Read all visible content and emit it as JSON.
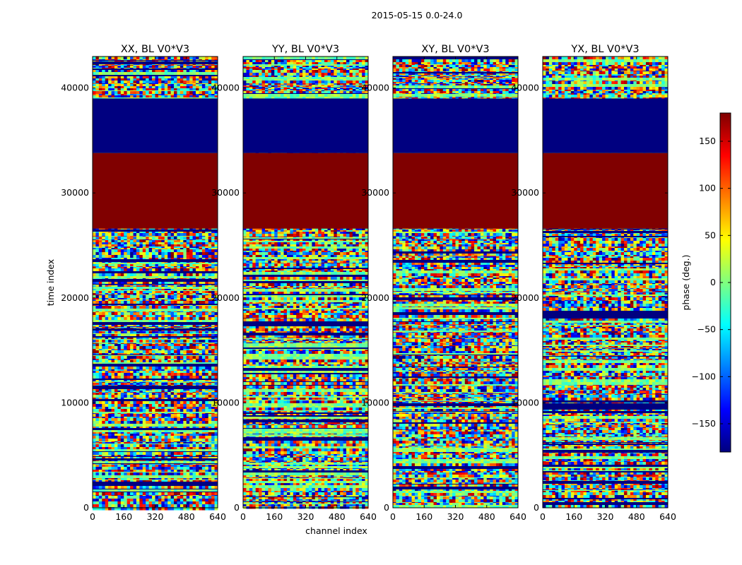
{
  "figure": {
    "suptitle": "2015-05-15 0.0-24.0",
    "ylabel": "time index",
    "xlabel": "channel index",
    "colorbar_label": "phase (deg.)"
  },
  "chart_data": {
    "type": "heatmap",
    "colormap": "jet",
    "xlim": [
      0,
      640
    ],
    "ylim": [
      0,
      43000
    ],
    "clim": [
      -180,
      180
    ],
    "x_ticks": [
      0,
      160,
      320,
      480,
      640
    ],
    "x_tick_labels": [
      "0",
      "160",
      "320",
      "480",
      "640"
    ],
    "y_ticks": [
      0,
      10000,
      20000,
      30000,
      40000
    ],
    "y_tick_labels": [
      "0",
      "10000",
      "20000",
      "30000",
      "40000"
    ],
    "colorbar_ticks": [
      -150,
      -100,
      -50,
      0,
      50,
      100,
      150
    ],
    "colorbar_tick_labels": [
      "−150",
      "−100",
      "−50",
      "0",
      "50",
      "100",
      "150"
    ],
    "panels": [
      {
        "title": "XX, BL V0*V3"
      },
      {
        "title": "YY, BL V0*V3"
      },
      {
        "title": "XY, BL V0*V3"
      },
      {
        "title": "YX, BL V0*V3"
      }
    ],
    "constant_bands": [
      {
        "y_range": [
          33800,
          39000
        ],
        "phase": -180
      },
      {
        "y_range": [
          26600,
          33800
        ],
        "phase": 180
      }
    ]
  }
}
